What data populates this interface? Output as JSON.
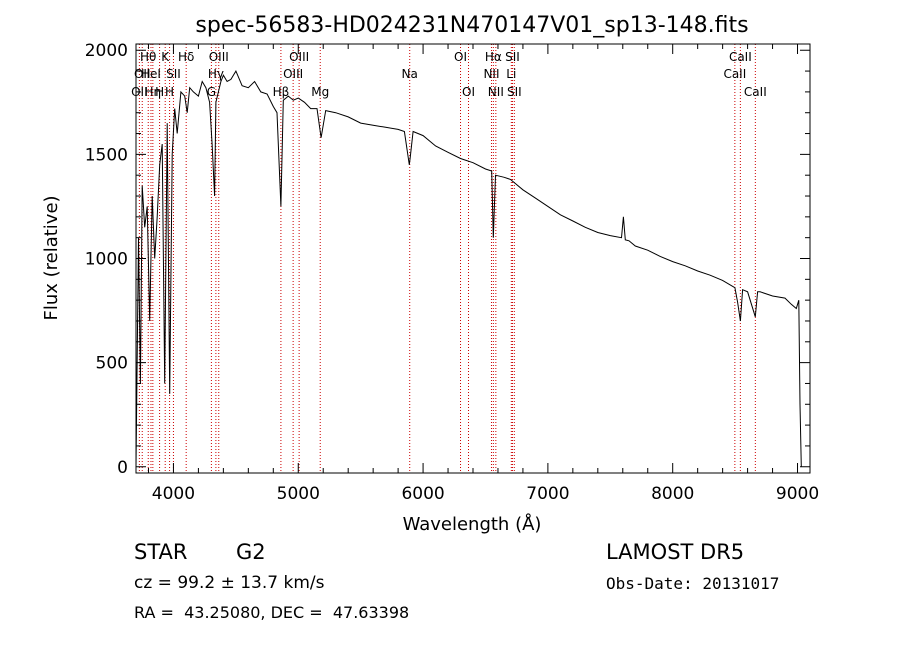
{
  "chart_data": {
    "type": "line",
    "title": "spec-56583-HD024231N470147V01_sp13-148.fits",
    "xlabel": "Wavelength (Å)",
    "ylabel": "Flux (relative)",
    "xlim": [
      3700,
      9100
    ],
    "ylim": [
      -30,
      2030
    ],
    "x_ticks": [
      4000,
      5000,
      6000,
      7000,
      8000,
      9000
    ],
    "y_ticks": [
      0,
      500,
      1000,
      1500,
      2000
    ],
    "grid": false,
    "series": [
      {
        "x": [
          3700,
          3720,
          3735,
          3750,
          3770,
          3790,
          3810,
          3830,
          3850,
          3870,
          3890,
          3910,
          3930,
          3950,
          3970,
          3990,
          4010,
          4030,
          4060,
          4090,
          4110,
          4130,
          4160,
          4200,
          4230,
          4260,
          4290,
          4310,
          4330,
          4340,
          4360,
          4380,
          4400,
          4430,
          4460,
          4500,
          4550,
          4600,
          4650,
          4700,
          4750,
          4800,
          4830,
          4861,
          4880,
          4920,
          4960,
          5000,
          5050,
          5100,
          5150,
          5183,
          5220,
          5300,
          5400,
          5500,
          5600,
          5700,
          5800,
          5850,
          5890,
          5896,
          5920,
          6000,
          6100,
          6200,
          6300,
          6400,
          6500,
          6550,
          6563,
          6580,
          6650,
          6700,
          6800,
          6900,
          7000,
          7100,
          7200,
          7300,
          7400,
          7500,
          7590,
          7605,
          7620,
          7650,
          7700,
          7800,
          7900,
          8000,
          8100,
          8200,
          8300,
          8400,
          8498,
          8520,
          8542,
          8560,
          8600,
          8662,
          8680,
          8700,
          8800,
          8900,
          8950,
          8990,
          9010,
          9020,
          9030
        ],
        "y": [
          0,
          1100,
          400,
          1350,
          1150,
          1250,
          700,
          1300,
          1000,
          1200,
          1450,
          1550,
          400,
          1650,
          350,
          1500,
          1720,
          1600,
          1800,
          1780,
          1700,
          1820,
          1800,
          1780,
          1850,
          1820,
          1750,
          1550,
          1300,
          1750,
          1800,
          1850,
          1880,
          1850,
          1860,
          1900,
          1830,
          1820,
          1850,
          1800,
          1790,
          1730,
          1700,
          1250,
          1760,
          1780,
          1760,
          1770,
          1750,
          1720,
          1720,
          1580,
          1710,
          1700,
          1680,
          1650,
          1640,
          1630,
          1620,
          1610,
          1450,
          1480,
          1610,
          1590,
          1540,
          1510,
          1480,
          1460,
          1430,
          1420,
          1100,
          1400,
          1390,
          1380,
          1330,
          1290,
          1250,
          1210,
          1180,
          1150,
          1125,
          1110,
          1100,
          1200,
          1090,
          1085,
          1060,
          1040,
          1010,
          985,
          965,
          940,
          920,
          895,
          860,
          790,
          700,
          850,
          840,
          720,
          840,
          840,
          820,
          810,
          780,
          760,
          800,
          300,
          0
        ]
      }
    ],
    "line_markers": [
      {
        "x": 3727,
        "label": "OII",
        "row": 2
      },
      {
        "x": 3750,
        "label": "OII",
        "row": 1
      },
      {
        "x": 3798,
        "label": "Hθ",
        "row": 0
      },
      {
        "x": 3820,
        "label": "HeI",
        "row": 1
      },
      {
        "x": 3835,
        "label": "Hη",
        "row": 2
      },
      {
        "x": 3889,
        "label": "H",
        "row": 2
      },
      {
        "x": 3934,
        "label": "K",
        "row": 0
      },
      {
        "x": 3969,
        "label": "H",
        "row": 2
      },
      {
        "x": 4000,
        "label": "SII",
        "row": 1
      },
      {
        "x": 4102,
        "label": "Hδ",
        "row": 0
      },
      {
        "x": 4304,
        "label": "G",
        "row": 2
      },
      {
        "x": 4340,
        "label": "Hγ",
        "row": 1
      },
      {
        "x": 4363,
        "label": "OIII",
        "row": 0
      },
      {
        "x": 4861,
        "label": "Hβ",
        "row": 2
      },
      {
        "x": 4959,
        "label": "OIII",
        "row": 1
      },
      {
        "x": 5007,
        "label": "OIII",
        "row": 0
      },
      {
        "x": 5176,
        "label": "Mg",
        "row": 2
      },
      {
        "x": 5893,
        "label": "Na",
        "row": 1
      },
      {
        "x": 6300,
        "label": "OI",
        "row": 0
      },
      {
        "x": 6364,
        "label": "OI",
        "row": 2
      },
      {
        "x": 6548,
        "label": "NII",
        "row": 1
      },
      {
        "x": 6563,
        "label": "Hα",
        "row": 0
      },
      {
        "x": 6583,
        "label": "NII",
        "row": 2
      },
      {
        "x": 6707,
        "label": "Li",
        "row": 1
      },
      {
        "x": 6716,
        "label": "SII",
        "row": 0
      },
      {
        "x": 6731,
        "label": "SII",
        "row": 2
      },
      {
        "x": 8498,
        "label": "CaII",
        "row": 1
      },
      {
        "x": 8542,
        "label": "CaII",
        "row": 0
      },
      {
        "x": 8662,
        "label": "CaII",
        "row": 2
      }
    ]
  },
  "info": {
    "object_type": "STAR",
    "subclass": "G2",
    "survey": "LAMOST DR5",
    "cz": "cz = 99.2 ± 13.7 km/s",
    "obs_date": "Obs-Date: 20131017",
    "coords": "RA =  43.25080, DEC =  47.63398"
  },
  "colors": {
    "line": "#000000",
    "marker": "#cc0000",
    "background": "#ffffff"
  }
}
